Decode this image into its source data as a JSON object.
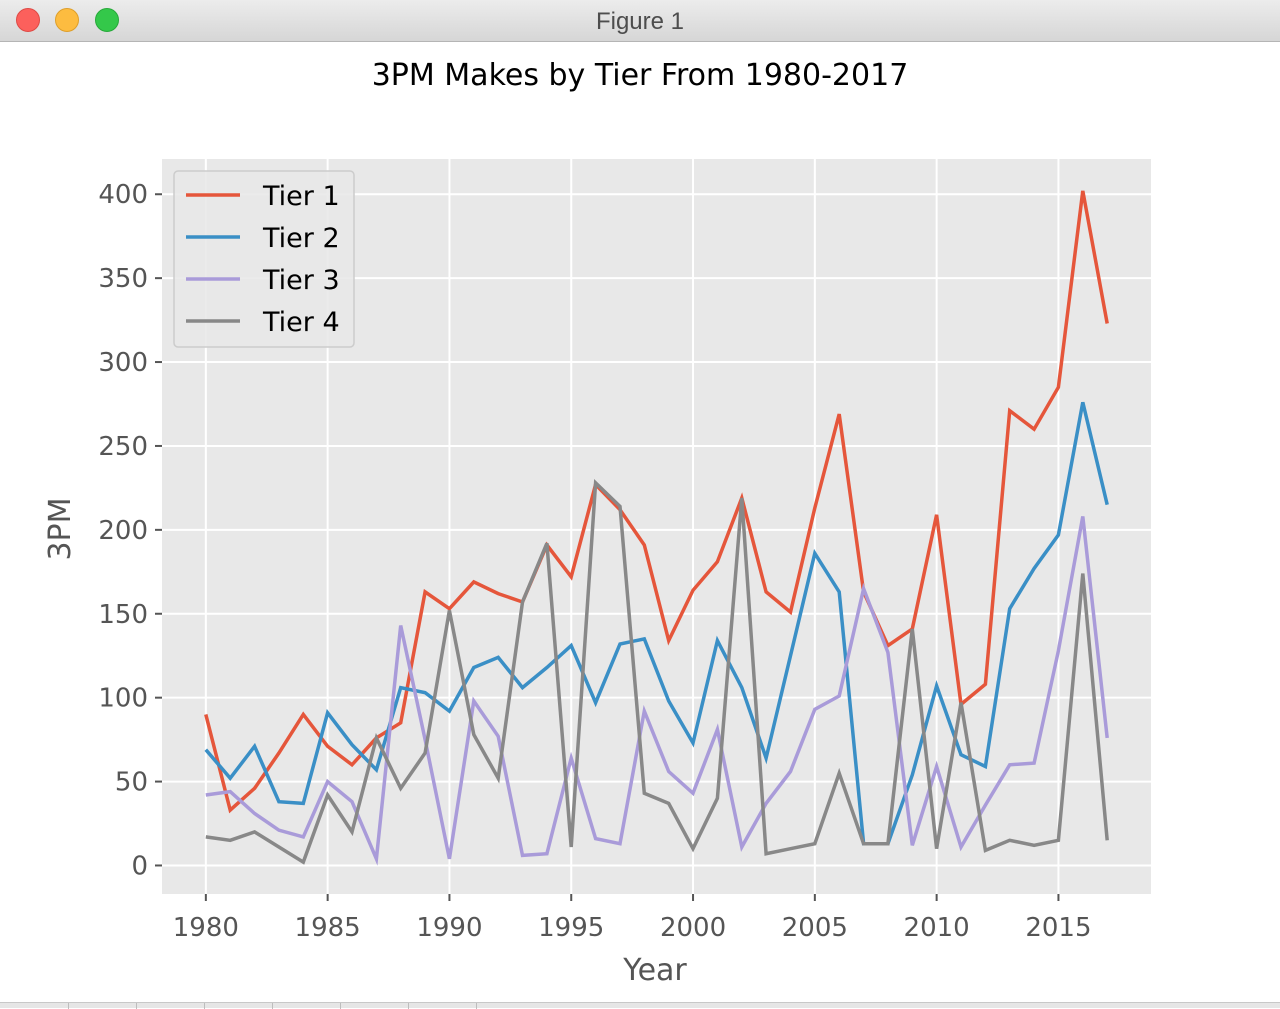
{
  "window": {
    "title": "Figure 1"
  },
  "colors": {
    "titlebar_close": "#fc605c",
    "titlebar_minimize": "#fdbc40",
    "titlebar_zoom": "#34c84a",
    "plot_background": "#e8e8e8",
    "grid": "#ffffff"
  },
  "chart_data": {
    "type": "line",
    "title": "3PM Makes by Tier From 1980-2017",
    "xlabel": "Year",
    "ylabel": "3PM",
    "xlim": [
      1978.2,
      2018.8
    ],
    "ylim": [
      -17,
      421
    ],
    "xticks": [
      1980,
      1985,
      1990,
      1995,
      2000,
      2005,
      2010,
      2015
    ],
    "yticks": [
      0,
      50,
      100,
      150,
      200,
      250,
      300,
      350,
      400
    ],
    "grid": true,
    "legend_position": "top-left",
    "x": [
      1980,
      1981,
      1982,
      1983,
      1984,
      1985,
      1986,
      1987,
      1988,
      1989,
      1990,
      1991,
      1992,
      1993,
      1994,
      1995,
      1996,
      1997,
      1998,
      1999,
      2000,
      2001,
      2002,
      2003,
      2004,
      2005,
      2006,
      2007,
      2008,
      2009,
      2010,
      2011,
      2012,
      2013,
      2014,
      2015,
      2016,
      2017
    ],
    "series": [
      {
        "name": "Tier 1",
        "color": "#e5563b",
        "values": [
          90,
          33,
          46,
          67,
          90,
          71,
          60,
          76,
          85,
          163,
          153,
          169,
          162,
          157,
          191,
          172,
          227,
          212,
          191,
          134,
          164,
          181,
          219,
          163,
          151,
          213,
          269,
          163,
          131,
          141,
          209,
          96,
          108,
          271,
          260,
          285,
          402,
          323
        ]
      },
      {
        "name": "Tier 2",
        "color": "#3a8fc6",
        "values": [
          69,
          52,
          71,
          38,
          37,
          91,
          72,
          57,
          106,
          103,
          92,
          118,
          124,
          106,
          118,
          131,
          97,
          132,
          135,
          98,
          73,
          134,
          106,
          64,
          125,
          186,
          163,
          13,
          13,
          54,
          107,
          66,
          59,
          153,
          177,
          197,
          276,
          215
        ]
      },
      {
        "name": "Tier 3",
        "color": "#a99bd9",
        "values": [
          42,
          44,
          31,
          21,
          17,
          50,
          38,
          4,
          143,
          75,
          4,
          98,
          77,
          6,
          7,
          64,
          16,
          13,
          92,
          56,
          43,
          81,
          11,
          37,
          56,
          93,
          101,
          165,
          127,
          12,
          59,
          11,
          36,
          60,
          61,
          128,
          208,
          76
        ]
      },
      {
        "name": "Tier 4",
        "color": "#888888",
        "values": [
          17,
          15,
          20,
          11,
          2,
          42,
          20,
          76,
          46,
          67,
          152,
          78,
          52,
          157,
          192,
          11,
          228,
          214,
          43,
          37,
          10,
          40,
          219,
          7,
          10,
          13,
          55,
          13,
          13,
          141,
          10,
          97,
          9,
          15,
          12,
          15,
          174,
          15
        ]
      }
    ]
  }
}
